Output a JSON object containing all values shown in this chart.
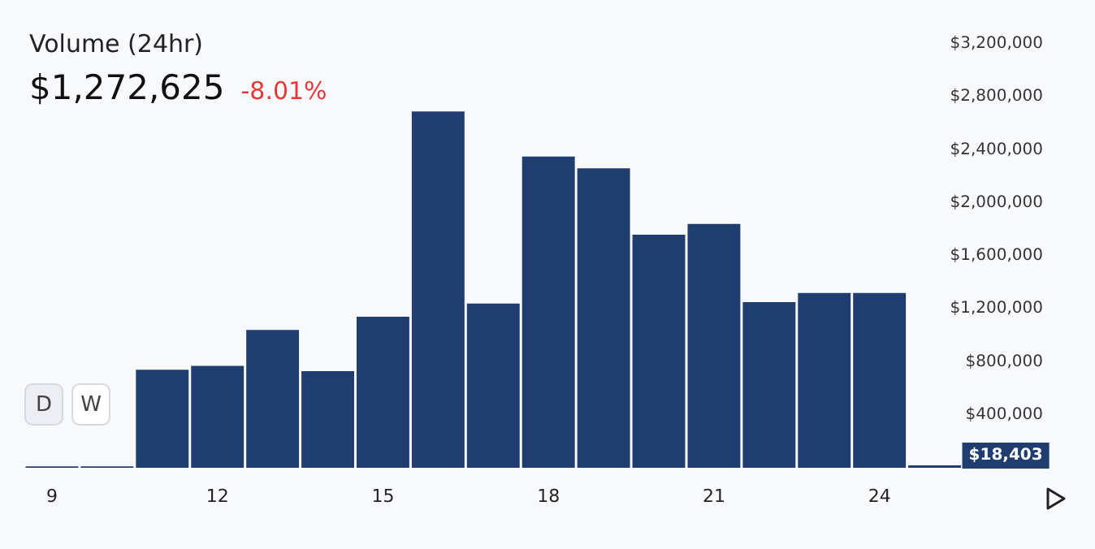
{
  "chart_data": {
    "type": "bar",
    "title": "Volume (24hr)",
    "subtitle": "$1,272,625",
    "annotations": [
      "-8.01%",
      "D",
      "W",
      {
        "text": "$18,403",
        "x": 25,
        "y": 18403
      }
    ],
    "x": [
      9,
      10,
      11,
      12,
      13,
      14,
      15,
      16,
      17,
      18,
      19,
      20,
      21,
      22,
      23,
      24,
      25
    ],
    "values": [
      10000,
      10000,
      740000,
      770000,
      1040000,
      730000,
      1140000,
      2690000,
      1240000,
      2350000,
      2260000,
      1760000,
      1840000,
      1250000,
      1320000,
      1320000,
      18403
    ],
    "color": "#1f3e6f",
    "xlim": [
      8.5,
      27.2
    ],
    "xticks": [
      9,
      12,
      15,
      18,
      21,
      24
    ],
    "ylim": [
      0,
      3200000
    ],
    "yticks": [
      {
        "value": 400000,
        "label": "$400,000"
      },
      {
        "value": 800000,
        "label": "$800,000"
      },
      {
        "value": 1200000,
        "label": "$1,200,000"
      },
      {
        "value": 1600000,
        "label": "$1,600,000"
      },
      {
        "value": 2000000,
        "label": "$2,000,000"
      },
      {
        "value": 2400000,
        "label": "$2,400,000"
      },
      {
        "value": 2800000,
        "label": "$2,800,000"
      },
      {
        "value": 3200000,
        "label": "$3,200,000"
      }
    ],
    "grid": false
  }
}
